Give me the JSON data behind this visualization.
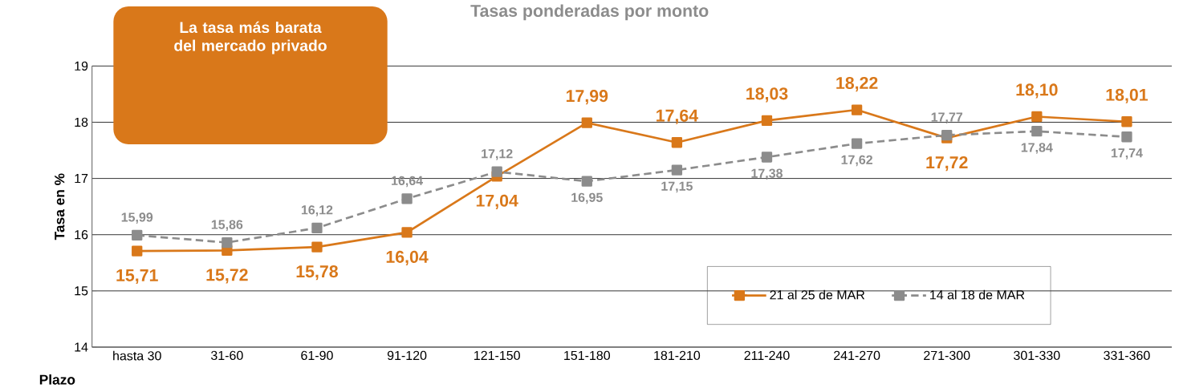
{
  "chart_data": {
    "type": "line",
    "title": "Tasas ponderadas por monto",
    "xlabel": "Plazo",
    "ylabel": "Tasa en %",
    "annotations": [
      "La tasa más barata del mercado privado"
    ],
    "categories": [
      "hasta 30",
      "31-60",
      "61-90",
      "91-120",
      "121-150",
      "151-180",
      "181-210",
      "211-240",
      "241-270",
      "271-300",
      "301-330",
      "331-360"
    ],
    "series": [
      {
        "name": "21 al 25 de MAR",
        "color": "#d9781a",
        "line_style": "solid",
        "values": [
          15.71,
          15.72,
          15.78,
          16.04,
          17.04,
          17.99,
          17.64,
          18.03,
          18.22,
          17.72,
          18.1,
          18.01
        ],
        "value_labels": [
          "15,71",
          "15,72",
          "15,78",
          "16,04",
          "17,04",
          "17,99",
          "17,64",
          "18,03",
          "18,22",
          "17,72",
          "18,10",
          "18,01"
        ]
      },
      {
        "name": "14 al 18 de MAR",
        "color": "#8c8c8c",
        "line_style": "dashed",
        "values": [
          15.99,
          15.86,
          16.12,
          16.64,
          17.12,
          16.95,
          17.15,
          17.38,
          17.62,
          17.77,
          17.84,
          17.74
        ],
        "value_labels": [
          "15,99",
          "15,86",
          "16,12",
          "16,64",
          "17,12",
          "16,95",
          "17,15",
          "17,38",
          "17,62",
          "17,77",
          "17,84",
          "17,74"
        ]
      }
    ],
    "ylim": [
      14,
      19
    ],
    "yticks": [
      14,
      15,
      16,
      17,
      18,
      19
    ],
    "grid": "y",
    "legend": "bottom right",
    "marker": "square"
  }
}
